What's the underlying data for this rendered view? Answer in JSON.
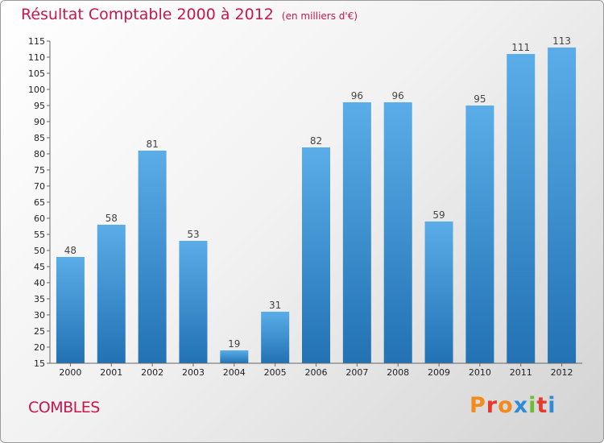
{
  "header": {
    "title": "Résultat Comptable 2000 à 2012",
    "subtitle": "(en milliers d'€)"
  },
  "footer": {
    "town": "COMBLES",
    "logo_text": "Proxiti"
  },
  "colors": {
    "bar_light": "#5aade8",
    "bar_dark": "#2272b4",
    "title": "#c8164b",
    "logo": [
      "#f28a1c",
      "#e8382c",
      "#f28a1c",
      "#2e8bd6",
      "#6bbf2a",
      "#e8382c",
      "#2e8bd6"
    ]
  },
  "chart_data": {
    "type": "bar",
    "title": "Résultat Comptable 2000 à 2012",
    "subtitle": "(en milliers d'€)",
    "xlabel": "",
    "ylabel": "",
    "categories": [
      "2000",
      "2001",
      "2002",
      "2003",
      "2004",
      "2005",
      "2006",
      "2007",
      "2008",
      "2009",
      "2010",
      "2011",
      "2012"
    ],
    "values": [
      48,
      58,
      81,
      53,
      19,
      31,
      82,
      96,
      96,
      59,
      95,
      111,
      113
    ],
    "value_labels": [
      "48",
      "58",
      "81",
      "53",
      "19",
      "31",
      "82",
      "96",
      "96",
      "59",
      "95",
      "111",
      "113"
    ],
    "ylim": [
      15,
      115
    ],
    "yticks": [
      15,
      20,
      25,
      30,
      35,
      40,
      45,
      50,
      55,
      60,
      65,
      70,
      75,
      80,
      85,
      90,
      95,
      100,
      105,
      110,
      115
    ],
    "grid": false,
    "legend": "none"
  }
}
